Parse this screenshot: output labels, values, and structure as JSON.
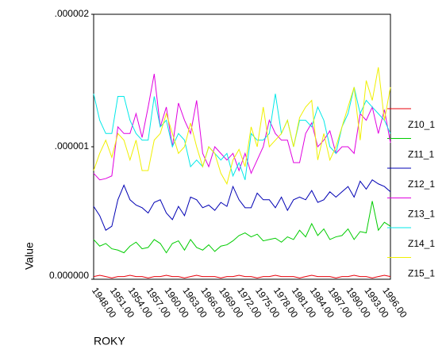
{
  "chart_data": {
    "type": "line",
    "x_label": "ROKY",
    "y_label": "Value",
    "categories": [
      "1948.00",
      null,
      null,
      "1951.00",
      null,
      null,
      "1954.00",
      null,
      null,
      "1957.00",
      null,
      null,
      "1960.00",
      null,
      null,
      "1963.00",
      null,
      null,
      "1966.00",
      null,
      null,
      "1969.00",
      null,
      null,
      "1972.00",
      null,
      null,
      "1975.00",
      null,
      null,
      "1978.00",
      null,
      null,
      "1981.00",
      null,
      null,
      "1984.00",
      null,
      null,
      "1987.00",
      null,
      null,
      "1990.00",
      null,
      null,
      "1993.00",
      null,
      null,
      "1996.00",
      null
    ],
    "ylim": [
      0,
      2e-06
    ],
    "yticks": [
      {
        "value": 0,
        "label": "0.000000"
      },
      {
        "value": 1e-06,
        "label": ".000001"
      },
      {
        "value": 2e-06,
        "label": ".000002"
      }
    ],
    "series": [
      {
        "name": "Z10_1",
        "color": "#e8000b",
        "values": [
          2e-08,
          3e-08,
          2e-08,
          1e-08,
          2e-08,
          2e-08,
          3e-08,
          2e-08,
          2e-08,
          1e-08,
          2e-08,
          2e-08,
          3e-08,
          2e-08,
          2e-08,
          1e-08,
          2e-08,
          3e-08,
          2e-08,
          2e-08,
          2e-08,
          1e-08,
          2e-08,
          2e-08,
          3e-08,
          2e-08,
          2e-08,
          1e-08,
          2e-08,
          2e-08,
          3e-08,
          2e-08,
          2e-08,
          2e-08,
          1e-08,
          2e-08,
          3e-08,
          2e-08,
          2e-08,
          2e-08,
          1e-08,
          2e-08,
          2e-08,
          3e-08,
          2e-08,
          2e-08,
          1e-08,
          2e-08,
          3e-08,
          2e-08
        ]
      },
      {
        "name": "Z11_1",
        "color": "#00cc00",
        "values": [
          3e-07,
          2.5e-07,
          2.7e-07,
          2.3e-07,
          2.2e-07,
          2e-07,
          2.5e-07,
          2.8e-07,
          2.3e-07,
          2.4e-07,
          3e-07,
          2.7e-07,
          2e-07,
          2.7e-07,
          2.9e-07,
          2.2e-07,
          3e-07,
          2.4e-07,
          2.2e-07,
          2.6e-07,
          2.1e-07,
          2.5e-07,
          2.6e-07,
          2.9e-07,
          3.3e-07,
          3.5e-07,
          3.2e-07,
          3.4e-07,
          2.9e-07,
          3e-07,
          3.1e-07,
          2.8e-07,
          3.2e-07,
          3e-07,
          3.7e-07,
          3.2e-07,
          4.2e-07,
          3.3e-07,
          3.8e-07,
          3e-07,
          3.2e-07,
          3.3e-07,
          3.8e-07,
          3e-07,
          3.6e-07,
          3.5e-07,
          5.9e-07,
          3.7e-07,
          4.3e-07,
          4e-07
        ]
      },
      {
        "name": "Z12_1",
        "color": "#0000b4",
        "values": [
          5.5e-07,
          4.8e-07,
          3.7e-07,
          4e-07,
          6e-07,
          7.1e-07,
          6e-07,
          5.6e-07,
          5.4e-07,
          5e-07,
          5.8e-07,
          6e-07,
          5e-07,
          4.5e-07,
          5.5e-07,
          4.8e-07,
          6.2e-07,
          6e-07,
          5.4e-07,
          5.6e-07,
          5.2e-07,
          5.8e-07,
          5.5e-07,
          7e-07,
          6e-07,
          5.4e-07,
          5.4e-07,
          6.5e-07,
          6e-07,
          6e-07,
          5.4e-07,
          6.2e-07,
          5.2e-07,
          6e-07,
          6.2e-07,
          6e-07,
          6.7e-07,
          5.8e-07,
          6e-07,
          6.6e-07,
          6.2e-07,
          6.6e-07,
          7e-07,
          6.2e-07,
          7.4e-07,
          6.8e-07,
          7.5e-07,
          7.2e-07,
          7e-07,
          6.6e-07
        ]
      },
      {
        "name": "Z13_1",
        "color": "#e000e0",
        "values": [
          8e-07,
          7.5e-07,
          7.6e-07,
          7.8e-07,
          1.15e-06,
          1.1e-06,
          1.1e-06,
          1.25e-06,
          1.07e-06,
          1.3e-06,
          1.55e-06,
          1.15e-06,
          1.3e-06,
          1e-06,
          1.33e-06,
          1.2e-06,
          1.1e-06,
          1.35e-06,
          9.5e-07,
          8.5e-07,
          1e-06,
          9.5e-07,
          9e-07,
          9.5e-07,
          8.2e-07,
          9.5e-07,
          8e-07,
          9e-07,
          1e-06,
          1.2e-06,
          1.1e-06,
          1.05e-06,
          1.05e-06,
          8.8e-07,
          8.8e-07,
          1.1e-06,
          1.18e-06,
          1e-06,
          1.05e-06,
          1.12e-06,
          9.5e-07,
          1e-06,
          1e-06,
          9.5e-07,
          1.25e-06,
          1.2e-06,
          1.3e-06,
          1.1e-06,
          1.28e-06,
          1.03e-06
        ]
      },
      {
        "name": "Z14_1",
        "color": "#00e8e8",
        "values": [
          1.4e-06,
          1.2e-06,
          1.1e-06,
          1.1e-06,
          1.38e-06,
          1.38e-06,
          1.2e-06,
          1.1e-06,
          1.05e-06,
          1.05e-06,
          1.38e-06,
          1.15e-06,
          1.2e-06,
          1e-06,
          1.1e-06,
          1.05e-06,
          8.5e-07,
          9e-07,
          8.5e-07,
          1e-06,
          9.5e-07,
          9e-07,
          9.5e-07,
          7.8e-07,
          8.8e-07,
          7.5e-07,
          1.1e-06,
          1.05e-06,
          1.05e-06,
          1.1e-06,
          1.4e-06,
          1.1e-06,
          1.2e-06,
          1e-06,
          1.2e-06,
          1.2e-06,
          1.15e-06,
          1.3e-06,
          1.2e-06,
          1e-06,
          9.5e-07,
          1.15e-06,
          1.25e-06,
          1.45e-06,
          1.25e-06,
          1.35e-06,
          1.3e-06,
          1.25e-06,
          1.2e-06,
          1.1e-06
        ]
      },
      {
        "name": "Z15_1",
        "color": "#f0f000",
        "values": [
          8.2e-07,
          9.5e-07,
          1.05e-06,
          9.2e-07,
          1.1e-06,
          1.05e-06,
          9e-07,
          1.05e-06,
          8.2e-07,
          8.2e-07,
          1.05e-06,
          1.1e-06,
          1.25e-06,
          1.1e-06,
          9.5e-07,
          1e-06,
          1.18e-06,
          1e-06,
          8.5e-07,
          1e-06,
          9.5e-07,
          8e-07,
          7.2e-07,
          9e-07,
          9.8e-07,
          8.5e-07,
          1.15e-06,
          1e-06,
          1.3e-06,
          1e-06,
          1.05e-06,
          1.1e-06,
          1.2e-06,
          1e-06,
          1.22e-06,
          1.3e-06,
          1.35e-06,
          9e-07,
          1.1e-06,
          9e-07,
          1e-06,
          1.15e-06,
          1.3e-06,
          1.45e-06,
          1.05e-06,
          1.5e-06,
          1.35e-06,
          1.6e-06,
          1.2e-06,
          1.45e-06
        ]
      }
    ]
  }
}
